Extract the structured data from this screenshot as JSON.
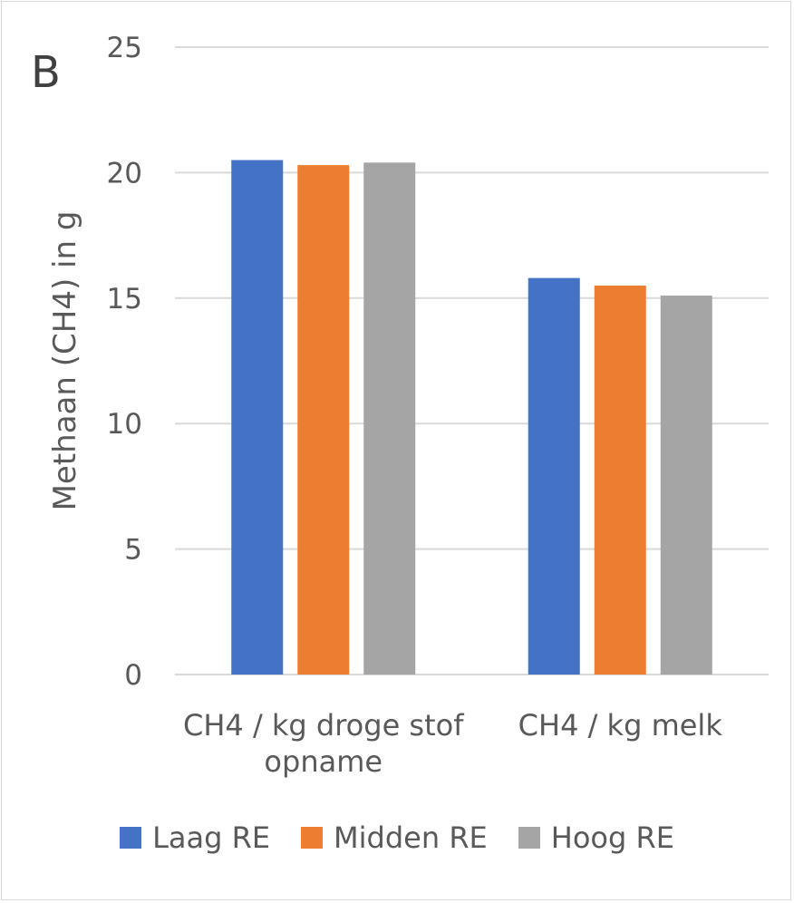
{
  "panel_label": "B",
  "chart_data": {
    "type": "bar",
    "title": "",
    "ylabel": "Methaan (CH4) in g",
    "xlabel": "",
    "categories": [
      "CH4 / kg droge stof\nopname",
      "CH4 / kg melk"
    ],
    "ylim": [
      0,
      25
    ],
    "yticks": [
      0,
      5,
      10,
      15,
      20,
      25
    ],
    "grid": true,
    "legend_position": "bottom",
    "series": [
      {
        "name": "Laag RE",
        "values": [
          20.5,
          15.8
        ],
        "color": "#4472c4"
      },
      {
        "name": "Midden RE",
        "values": [
          20.3,
          15.5
        ],
        "color": "#ed7d31"
      },
      {
        "name": "Hoog RE",
        "values": [
          20.4,
          15.1
        ],
        "color": "#a5a5a5"
      }
    ]
  }
}
